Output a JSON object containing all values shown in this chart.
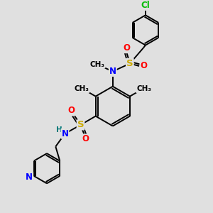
{
  "background_color": "#e0e0e0",
  "bond_color": "#000000",
  "bond_width": 1.4,
  "atom_colors": {
    "C": "#000000",
    "N": "#0000ff",
    "O": "#ff0000",
    "S": "#ccaa00",
    "Cl": "#00bb00",
    "H": "#007777"
  },
  "font_size": 8.5,
  "fig_size": [
    3.0,
    3.0
  ],
  "dpi": 100,
  "xlim": [
    0,
    10
  ],
  "ylim": [
    0,
    10
  ]
}
